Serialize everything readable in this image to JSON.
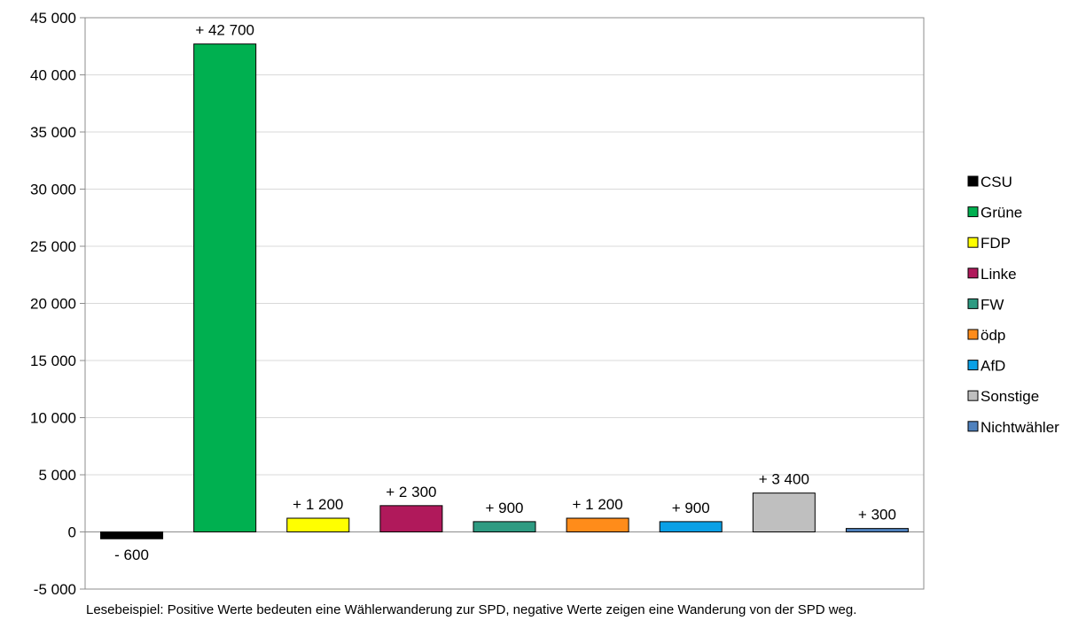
{
  "chart_data": {
    "type": "bar",
    "categories": [
      "CSU",
      "Grüne",
      "FDP",
      "Linke",
      "FW",
      "ödp",
      "AfD",
      "Sonstige",
      "Nichtwähler"
    ],
    "values": [
      -600,
      42700,
      1200,
      2300,
      900,
      1200,
      900,
      3400,
      300
    ],
    "data_labels": [
      "- 600",
      "+ 42 700",
      "+ 1 200",
      "+ 2 300",
      "+ 900",
      "+ 1 200",
      "+ 900",
      "+ 3 400",
      "+ 300"
    ],
    "colors": [
      "#000000",
      "#00b050",
      "#ffff00",
      "#b0195b",
      "#2e9b82",
      "#ff8c1a",
      "#0aa0e6",
      "#bfbfbf",
      "#4f81bd"
    ],
    "ylim": [
      -5000,
      45000
    ],
    "yticks": [
      -5000,
      0,
      5000,
      10000,
      15000,
      20000,
      25000,
      30000,
      35000,
      40000,
      45000
    ],
    "ytick_labels": [
      "-5 000",
      "0",
      "5 000",
      "10 000",
      "15 000",
      "20 000",
      "25 000",
      "30 000",
      "35 000",
      "40 000",
      "45 000"
    ],
    "grid": true,
    "legend_position": "right",
    "title": "",
    "xlabel": "",
    "ylabel": ""
  },
  "note": "Lesebeispiel: Positive Werte bedeuten eine Wählerwanderung zur SPD, negative Werte zeigen eine Wanderung von der SPD weg."
}
